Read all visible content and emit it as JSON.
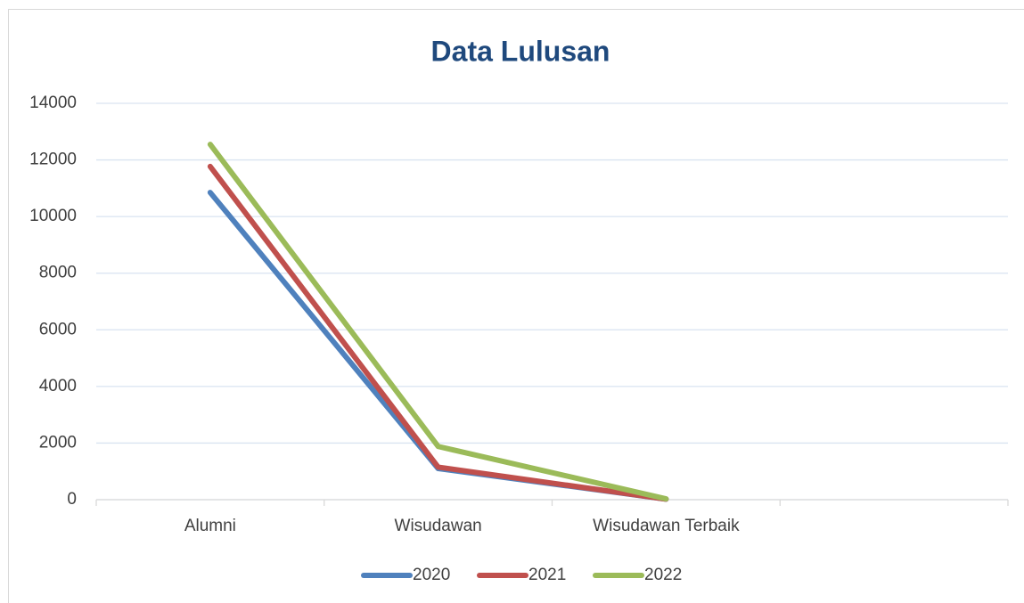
{
  "chart_data": {
    "type": "line",
    "title": "Data Lulusan",
    "categories": [
      "Alumni",
      "Wisudawan",
      "Wisudawan Terbaik",
      null
    ],
    "series": [
      {
        "name": "2020",
        "color": "#4f81bd",
        "values": [
          10850,
          1100,
          20,
          null
        ]
      },
      {
        "name": "2021",
        "color": "#c0504d",
        "values": [
          11770,
          1150,
          20,
          null
        ]
      },
      {
        "name": "2022",
        "color": "#9bbb59",
        "values": [
          12550,
          1880,
          30,
          null
        ]
      }
    ],
    "ylim": [
      0,
      14000
    ],
    "yticks": [
      0,
      2000,
      4000,
      6000,
      8000,
      10000,
      12000,
      14000
    ],
    "grid": true,
    "legend": "bottom"
  }
}
